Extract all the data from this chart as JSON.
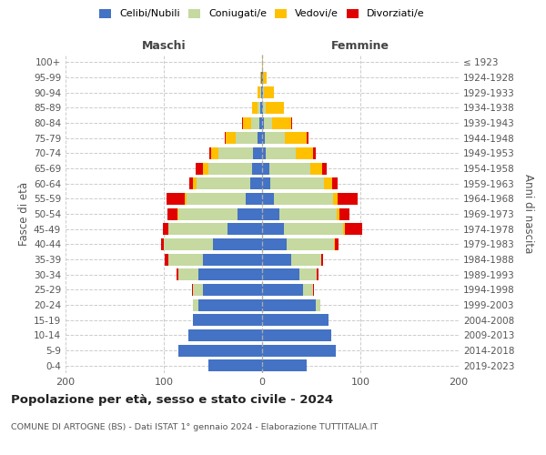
{
  "age_groups": [
    "0-4",
    "5-9",
    "10-14",
    "15-19",
    "20-24",
    "25-29",
    "30-34",
    "35-39",
    "40-44",
    "45-49",
    "50-54",
    "55-59",
    "60-64",
    "65-69",
    "70-74",
    "75-79",
    "80-84",
    "85-89",
    "90-94",
    "95-99",
    "100+"
  ],
  "birth_years": [
    "2019-2023",
    "2014-2018",
    "2009-2013",
    "2004-2008",
    "1999-2003",
    "1994-1998",
    "1989-1993",
    "1984-1988",
    "1979-1983",
    "1974-1978",
    "1969-1973",
    "1964-1968",
    "1959-1963",
    "1954-1958",
    "1949-1953",
    "1944-1948",
    "1939-1943",
    "1934-1938",
    "1929-1933",
    "1924-1928",
    "≤ 1923"
  ],
  "maschi": {
    "celibi": [
      55,
      85,
      75,
      70,
      65,
      60,
      65,
      60,
      50,
      35,
      25,
      17,
      12,
      10,
      9,
      5,
      3,
      2,
      1,
      1,
      0
    ],
    "coniugati": [
      0,
      0,
      0,
      0,
      5,
      10,
      20,
      35,
      50,
      60,
      60,
      60,
      55,
      45,
      35,
      22,
      8,
      3,
      1,
      0,
      0
    ],
    "vedovi": [
      0,
      0,
      0,
      0,
      0,
      0,
      0,
      0,
      0,
      0,
      1,
      2,
      3,
      5,
      8,
      10,
      8,
      5,
      3,
      1,
      0
    ],
    "divorziati": [
      0,
      0,
      0,
      0,
      0,
      1,
      2,
      4,
      3,
      6,
      10,
      18,
      4,
      8,
      2,
      1,
      1,
      0,
      0,
      0,
      0
    ]
  },
  "femmine": {
    "nubili": [
      45,
      75,
      70,
      68,
      55,
      42,
      38,
      30,
      25,
      22,
      18,
      12,
      8,
      7,
      4,
      3,
      2,
      1,
      1,
      1,
      0
    ],
    "coniugate": [
      0,
      0,
      0,
      0,
      4,
      10,
      18,
      30,
      48,
      60,
      58,
      60,
      55,
      42,
      30,
      20,
      8,
      3,
      1,
      0,
      0
    ],
    "vedove": [
      0,
      0,
      0,
      0,
      0,
      0,
      0,
      0,
      1,
      2,
      3,
      5,
      8,
      12,
      18,
      22,
      20,
      18,
      10,
      4,
      1
    ],
    "divorziate": [
      0,
      0,
      0,
      0,
      0,
      1,
      1,
      2,
      4,
      18,
      10,
      20,
      6,
      5,
      3,
      2,
      1,
      0,
      0,
      0,
      0
    ]
  },
  "colors": {
    "celibi": "#4472c4",
    "coniugati": "#c5d9a0",
    "vedovi": "#ffc000",
    "divorziati": "#e00000"
  },
  "xlim": 200,
  "title": "Popolazione per età, sesso e stato civile - 2024",
  "subtitle": "COMUNE DI ARTOGNE (BS) - Dati ISTAT 1° gennaio 2024 - Elaborazione TUTTITALIA.IT",
  "ylabel_left": "Fasce di età",
  "ylabel_right": "Anni di nascita",
  "xlabel_left": "Maschi",
  "xlabel_right": "Femmine",
  "legend_labels": [
    "Celibi/Nubili",
    "Coniugati/e",
    "Vedovi/e",
    "Divorziati/e"
  ]
}
